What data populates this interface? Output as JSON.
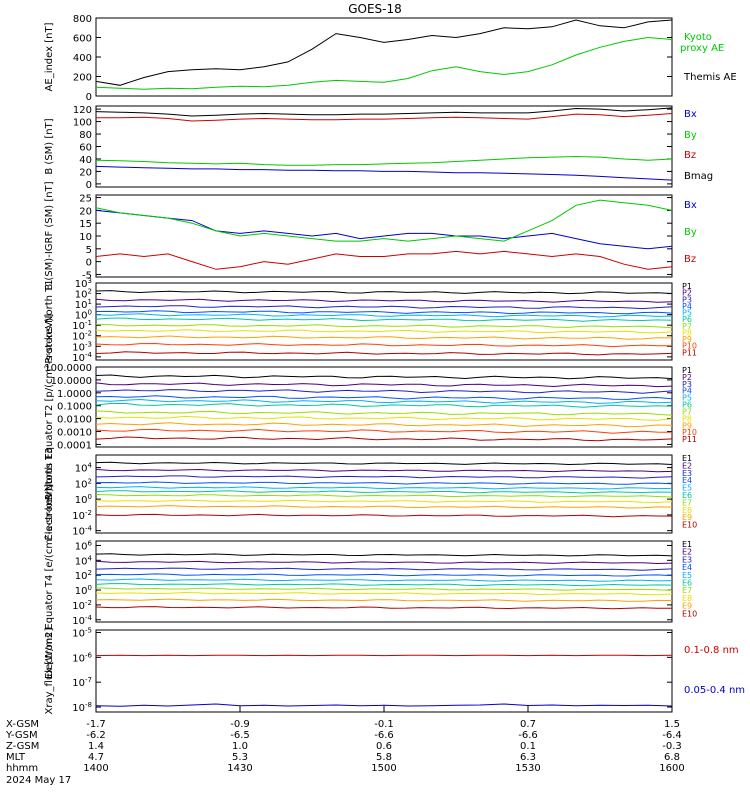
{
  "title": "GOES-18",
  "chart_data": [
    {
      "type": "line",
      "panel": "AE",
      "ylabel": "AE_index [nT]",
      "ylim": [
        0,
        800
      ],
      "yticks": [
        "0",
        "200",
        "400",
        "600",
        "800"
      ],
      "x": [
        0,
        5,
        10,
        15,
        20,
        25,
        30,
        35,
        40,
        45,
        50,
        55,
        60,
        65,
        70,
        75,
        80,
        85,
        90,
        95,
        100,
        105,
        110,
        115,
        120
      ],
      "series": [
        {
          "name": "Kyoto proxy AE",
          "color": "#00c800",
          "values": [
            90,
            80,
            70,
            80,
            75,
            90,
            100,
            95,
            110,
            140,
            160,
            150,
            140,
            180,
            260,
            300,
            250,
            220,
            250,
            320,
            420,
            500,
            560,
            600,
            580
          ]
        },
        {
          "name": "Themis AE",
          "color": "#000000",
          "values": [
            150,
            110,
            190,
            250,
            270,
            280,
            270,
            300,
            350,
            480,
            640,
            600,
            550,
            580,
            620,
            600,
            640,
            700,
            690,
            710,
            780,
            720,
            700,
            760,
            780
          ]
        }
      ]
    },
    {
      "type": "line",
      "panel": "B_SM",
      "ylabel": "B (SM) [nT]",
      "ylim": [
        -5,
        125
      ],
      "yticks": [
        "0",
        "20",
        "40",
        "60",
        "80",
        "100",
        "120"
      ],
      "series": [
        {
          "name": "Bx",
          "color": "#0000cc",
          "values": [
            28,
            27,
            26,
            25,
            24,
            24,
            23,
            23,
            22,
            22,
            21,
            21,
            20,
            20,
            19,
            18,
            18,
            17,
            16,
            15,
            14,
            12,
            10,
            8,
            6
          ]
        },
        {
          "name": "By",
          "color": "#00c800",
          "values": [
            38,
            37,
            36,
            34,
            33,
            32,
            33,
            31,
            30,
            30,
            31,
            31,
            32,
            33,
            34,
            36,
            38,
            40,
            42,
            43,
            44,
            43,
            40,
            38,
            40
          ]
        },
        {
          "name": "Bz",
          "color": "#cc0000",
          "values": [
            106,
            106,
            107,
            105,
            101,
            102,
            104,
            105,
            104,
            103,
            103,
            104,
            104,
            105,
            106,
            107,
            106,
            105,
            104,
            108,
            112,
            111,
            108,
            110,
            113
          ]
        },
        {
          "name": "Bmag",
          "color": "#000000",
          "values": [
            116,
            115,
            114,
            112,
            109,
            110,
            112,
            113,
            112,
            111,
            111,
            112,
            112,
            113,
            114,
            115,
            114,
            114,
            114,
            117,
            121,
            120,
            117,
            119,
            122
          ]
        }
      ]
    },
    {
      "type": "line",
      "panel": "dB",
      "ylabel": "B (SM)-IGRF (SM) [nT]",
      "ylim": [
        -6,
        26
      ],
      "yticks": [
        "-5",
        "0",
        "5",
        "10",
        "15",
        "20",
        "25"
      ],
      "series": [
        {
          "name": "Bx",
          "color": "#0000cc",
          "values": [
            20,
            19,
            18,
            17,
            16,
            12,
            11,
            12,
            11,
            10,
            11,
            9,
            10,
            11,
            11,
            10,
            10,
            9,
            10,
            11,
            9,
            7,
            6,
            5,
            6
          ]
        },
        {
          "name": "By",
          "color": "#00c800",
          "values": [
            21,
            19,
            18,
            17,
            15,
            12,
            10,
            11,
            10,
            9,
            8,
            8,
            9,
            8,
            9,
            10,
            9,
            8,
            12,
            16,
            22,
            24,
            23,
            22,
            20
          ]
        },
        {
          "name": "Bz",
          "color": "#cc0000",
          "values": [
            2,
            3,
            2,
            3,
            0,
            -3,
            -2,
            0,
            -1,
            1,
            3,
            2,
            2,
            3,
            3,
            4,
            3,
            4,
            3,
            2,
            3,
            2,
            -1,
            -3,
            -2
          ]
        }
      ]
    },
    {
      "type": "line",
      "panel": "ProtonsT1",
      "ylabel": "Protons North T1",
      "log": true,
      "ylim": [
        -4.3,
        3
      ],
      "yticks": [
        "10^3",
        "10^2",
        "10^1",
        "10^0",
        "10^-1",
        "10^-2",
        "10^-3",
        "10^-4"
      ],
      "legend": [
        "P1",
        "P2",
        "P3",
        "P4",
        "P5",
        "P6",
        "P7",
        "P8",
        "P9",
        "P10",
        "P11"
      ],
      "colors": [
        "#000000",
        "#4b0082",
        "#2020c8",
        "#0050ff",
        "#00b0ff",
        "#00c8a0",
        "#90e000",
        "#e8e000",
        "#ffa000",
        "#ff4000",
        "#b00000"
      ],
      "levels": [
        2.2,
        1.4,
        0.8,
        0.3,
        0.0,
        -0.4,
        -1.0,
        -1.5,
        -2.1,
        -2.8,
        -3.6
      ]
    },
    {
      "type": "line",
      "panel": "ProtonsT2",
      "ylabel": "Protons Equator T2 [p/(cm²-s-sr-keV)]",
      "log": true,
      "ylim": [
        -4.2,
        2
      ],
      "yticks": [
        "100.0000",
        "10.0000",
        "1.0000",
        "0.1000",
        "0.0100",
        "0.0010",
        "0.0001"
      ],
      "legend": [
        "P1",
        "P2",
        "P3",
        "P4",
        "P5",
        "P6",
        "P7",
        "P8",
        "P9",
        "P10",
        "P11"
      ],
      "colors": [
        "#000000",
        "#4b0082",
        "#2020c8",
        "#0050ff",
        "#00b0ff",
        "#00c8a0",
        "#90e000",
        "#e8e000",
        "#ffa000",
        "#ff4000",
        "#b00000"
      ],
      "levels": [
        1.3,
        0.7,
        0.2,
        -0.3,
        -0.6,
        -0.9,
        -1.5,
        -1.9,
        -2.4,
        -2.9,
        -3.5
      ]
    },
    {
      "type": "line",
      "panel": "ElectronsT3",
      "ylabel": "Electrons North T3",
      "log": true,
      "ylim": [
        -4.3,
        5.6
      ],
      "yticks": [
        "10^4",
        "10^2",
        "10^0",
        "10^-2",
        "10^-4"
      ],
      "legend": [
        "E1",
        "E2",
        "E3",
        "E4",
        "E5",
        "E6",
        "E7",
        "E8",
        "E9",
        "E10"
      ],
      "colors": [
        "#000000",
        "#4b0082",
        "#2020c8",
        "#0050ff",
        "#00b0ff",
        "#00c8a0",
        "#90e000",
        "#e8e000",
        "#ffa000",
        "#b00000"
      ],
      "levels": [
        4.6,
        3.7,
        2.9,
        2.1,
        1.5,
        1.0,
        0.5,
        -0.2,
        -0.9,
        -2.0
      ]
    },
    {
      "type": "line",
      "panel": "ElectronsT4",
      "ylabel": "Electrons Equator T4 [e/(cm²-s-sr-keV)]",
      "log": true,
      "ylim": [
        -4.3,
        6.6
      ],
      "yticks": [
        "10^6",
        "10^4",
        "10^2",
        "10^0",
        "10^-2",
        "10^-4"
      ],
      "legend": [
        "E1",
        "E2",
        "E3",
        "E4",
        "E5",
        "E6",
        "E7",
        "E8",
        "E9",
        "E10"
      ],
      "colors": [
        "#000000",
        "#4b0082",
        "#2020c8",
        "#0050ff",
        "#00b0ff",
        "#00c8a0",
        "#90e000",
        "#e8e000",
        "#ffa000",
        "#b00000"
      ],
      "levels": [
        4.8,
        3.8,
        2.9,
        2.1,
        1.4,
        0.8,
        0.2,
        -0.4,
        -1.3,
        -2.3
      ]
    },
    {
      "type": "line",
      "panel": "Xray",
      "ylabel": "Xray_flux [W/m2]",
      "log": true,
      "ylim": [
        -8.2,
        -4.9
      ],
      "yticks": [
        "10^-5",
        "10^-6",
        "10^-7",
        "10^-8"
      ],
      "series": [
        {
          "name": "0.1-0.8 nm",
          "color": "#cc0000",
          "values": [
            -5.93,
            -5.92,
            -5.93,
            -5.92,
            -5.93,
            -5.92,
            -5.92,
            -5.93,
            -5.92,
            -5.93,
            -5.92,
            -5.92,
            -5.93,
            -5.92,
            -5.92,
            -5.93,
            -5.92,
            -5.92,
            -5.93,
            -5.92,
            -5.93,
            -5.92,
            -5.92,
            -5.93,
            -5.92
          ]
        },
        {
          "name": "0.05-0.4 nm",
          "color": "#0000cc",
          "values": [
            -7.95,
            -7.97,
            -7.93,
            -7.96,
            -7.92,
            -7.88,
            -7.95,
            -7.93,
            -7.96,
            -7.94,
            -7.92,
            -7.95,
            -7.93,
            -7.96,
            -7.95,
            -7.93,
            -7.92,
            -7.88,
            -7.94,
            -7.92,
            -7.95,
            -7.93,
            -7.94,
            -7.93,
            -7.96
          ]
        }
      ]
    }
  ],
  "xaxis": {
    "rows": [
      {
        "label": "X-GSM",
        "values": [
          "-1.7",
          "-0.9",
          "-0.1",
          "0.7",
          "1.5"
        ]
      },
      {
        "label": "Y-GSM",
        "values": [
          "-6.2",
          "-6.5",
          "-6.6",
          "-6.6",
          "-6.4"
        ]
      },
      {
        "label": "Z-GSM",
        "values": [
          "1.4",
          "1.0",
          "0.6",
          "0.1",
          "-0.3"
        ]
      },
      {
        "label": "MLT",
        "values": [
          "4.7",
          "5.3",
          "5.8",
          "6.3",
          "6.8"
        ]
      },
      {
        "label": "hhmm",
        "values": [
          "1400",
          "1430",
          "1500",
          "1530",
          "1600"
        ]
      }
    ],
    "date": "2024 May 17"
  },
  "legends": {
    "ae": [
      "Kyoto",
      "proxy AE",
      "Themis AE"
    ],
    "bsm": [
      "Bx",
      "By",
      "Bz",
      "Bmag"
    ],
    "db": [
      "Bx",
      "By",
      "Bz"
    ],
    "xray": [
      "0.1-0.8 nm",
      "0.05-0.4 nm"
    ]
  }
}
